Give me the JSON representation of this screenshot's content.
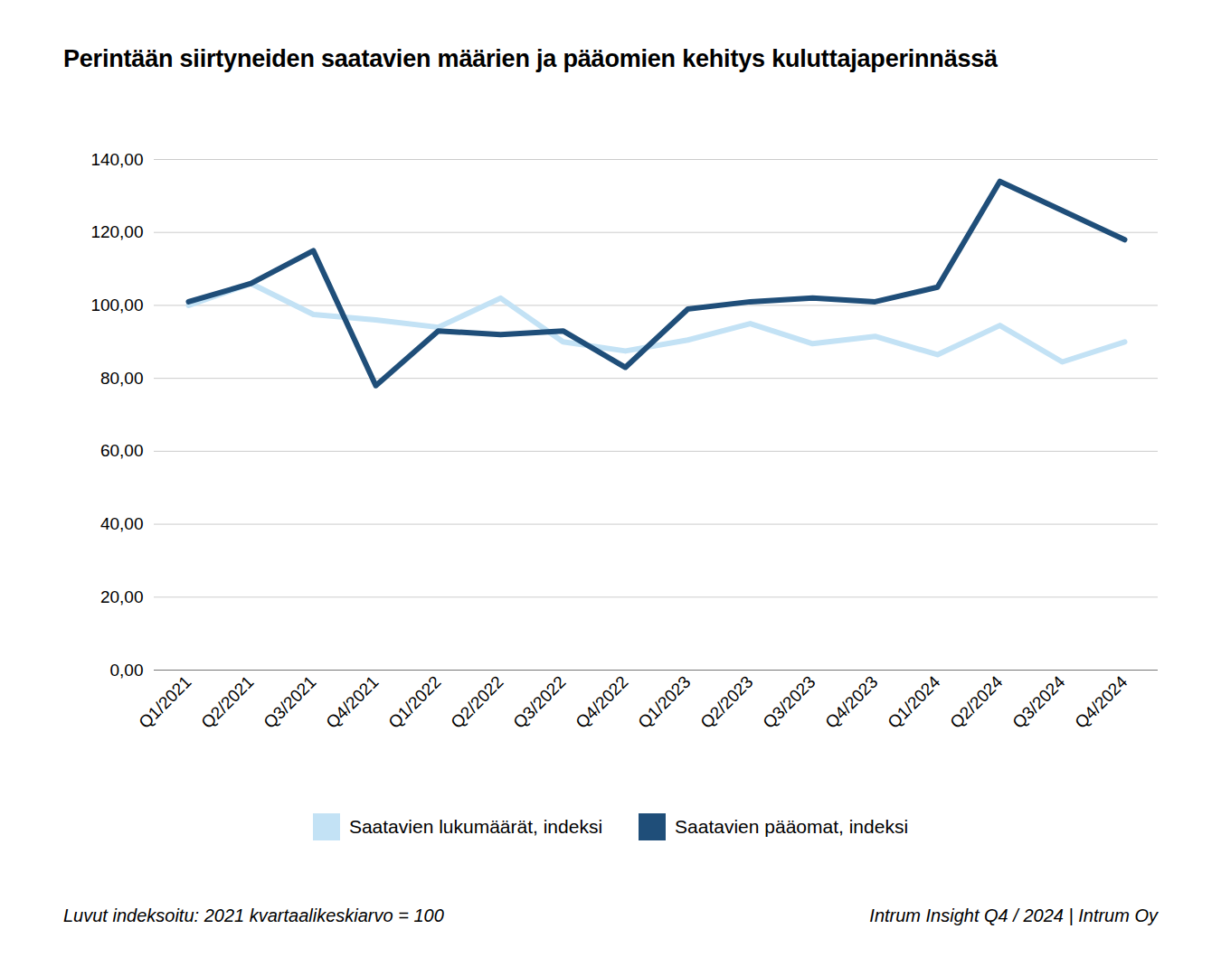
{
  "chart_data": {
    "type": "line",
    "title": "Perintään siirtyneiden saatavien määrien ja pääomien kehitys kuluttajaperinnässä",
    "categories": [
      "Q1/2021",
      "Q2/2021",
      "Q3/2021",
      "Q4/2021",
      "Q1/2022",
      "Q2/2022",
      "Q3/2022",
      "Q4/2022",
      "Q1/2023",
      "Q2/2023",
      "Q3/2023",
      "Q4/2023",
      "Q1/2024",
      "Q2/2024",
      "Q3/2024",
      "Q4/2024"
    ],
    "series": [
      {
        "name": "Saatavien lukumäärät, indeksi",
        "color": "#c3e2f5",
        "values": [
          100,
          106,
          97.5,
          96,
          94,
          102,
          90,
          87.5,
          90.5,
          95,
          89.5,
          91.5,
          86.5,
          94.5,
          84.5,
          90
        ]
      },
      {
        "name": "Saatavien pääomat, indeksi",
        "color": "#1f4e79",
        "values": [
          101,
          106,
          115,
          78,
          93,
          92,
          93,
          83,
          99,
          101,
          102,
          101,
          105,
          134,
          126,
          118
        ]
      }
    ],
    "ylim": [
      0,
      140
    ],
    "yticks": [
      {
        "value": 0,
        "label": "0,00"
      },
      {
        "value": 20,
        "label": "20,00"
      },
      {
        "value": 40,
        "label": "40,00"
      },
      {
        "value": 60,
        "label": "60,00"
      },
      {
        "value": 80,
        "label": "80,00"
      },
      {
        "value": 100,
        "label": "100,00"
      },
      {
        "value": 120,
        "label": "120,00"
      },
      {
        "value": 140,
        "label": "140,00"
      }
    ],
    "grid": true,
    "legend": "bottom",
    "caption": "Luvut indeksoitu: 2021 kvartaalikeskiarvo = 100",
    "source": "Intrum Insight Q4 / 2024 | Intrum Oy"
  }
}
